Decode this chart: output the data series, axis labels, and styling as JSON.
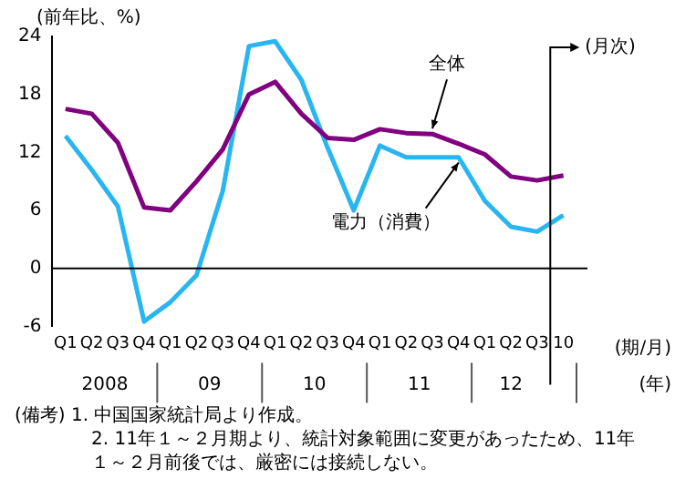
{
  "chart_data": {
    "type": "line",
    "ylabel": "(前年比、%)",
    "categories": [
      "Q1",
      "Q2",
      "Q3",
      "Q4",
      "Q1",
      "Q2",
      "Q3",
      "Q4",
      "Q1",
      "Q2",
      "Q3",
      "Q4",
      "Q1",
      "Q2",
      "Q3",
      "Q4",
      "Q1",
      "Q2",
      "Q3",
      "10"
    ],
    "series": [
      {
        "name": "全体",
        "color": "#800080",
        "values": [
          16.5,
          16.0,
          13.0,
          6.3,
          6.0,
          9.0,
          12.3,
          18.0,
          19.3,
          16.0,
          13.5,
          13.3,
          14.4,
          14.0,
          13.9,
          12.9,
          11.8,
          9.5,
          9.1,
          9.6
        ]
      },
      {
        "name": "電力（消費）",
        "color": "#29b6f0",
        "values": [
          13.7,
          10.2,
          6.4,
          -5.5,
          -3.5,
          -0.7,
          8.0,
          23.0,
          23.5,
          19.5,
          12.5,
          6.0,
          12.7,
          11.5,
          11.5,
          11.5,
          7.0,
          4.3,
          3.8,
          5.5
        ]
      }
    ],
    "ylim": [
      -6,
      24
    ],
    "yticks": [
      -6,
      0,
      6,
      12,
      18,
      24
    ],
    "grid": false,
    "marker": "none",
    "line_style": "solid",
    "ref_lines": [
      {
        "axis": "y",
        "value": 0,
        "color": "#000000"
      }
    ],
    "annotations": [
      "2008",
      "09",
      "10",
      "11",
      "12",
      "(年)",
      "(期/月)",
      "(月次)",
      "(備考) 1. 中国国家統計局より作成。",
      "2. 11年１～２月期より、統計対象範囲に変更があったため、11年１～２月前後では、厳密には接続しない。"
    ]
  }
}
